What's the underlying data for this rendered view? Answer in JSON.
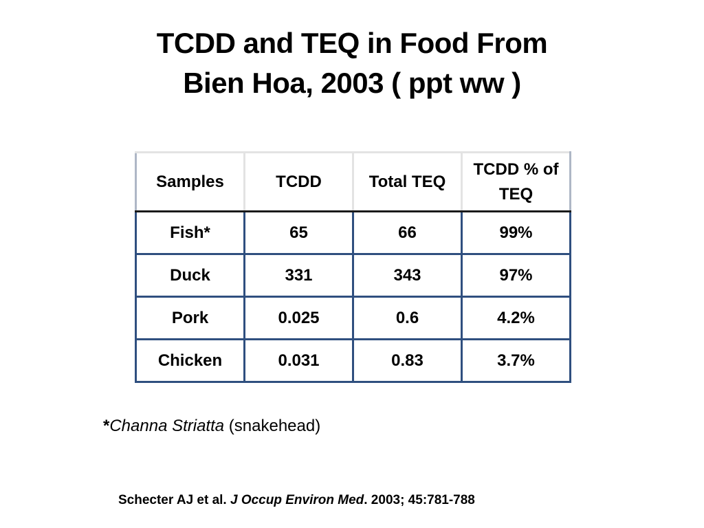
{
  "title": {
    "line1": "TCDD and TEQ in Food From",
    "line2": "Bien Hoa, 2003 ( ppt ww )"
  },
  "table": {
    "headers": [
      "Samples",
      "TCDD",
      "Total TEQ",
      "TCDD % of TEQ"
    ],
    "rows": [
      [
        "Fish*",
        "65",
        "66",
        "99%"
      ],
      [
        "Duck",
        "331",
        "343",
        "97%"
      ],
      [
        "Pork",
        "0.025",
        "0.6",
        "4.2%"
      ],
      [
        "Chicken",
        "0.031",
        "0.83",
        "3.7%"
      ]
    ]
  },
  "footnote": {
    "mark": "*",
    "species": "Channa Striatta",
    "common_name": " (snakehead)"
  },
  "citation": {
    "authors": "Schecter AJ et al.  ",
    "journal": "J Occup Environ Med",
    "details": ". 2003; 45:781-788"
  }
}
